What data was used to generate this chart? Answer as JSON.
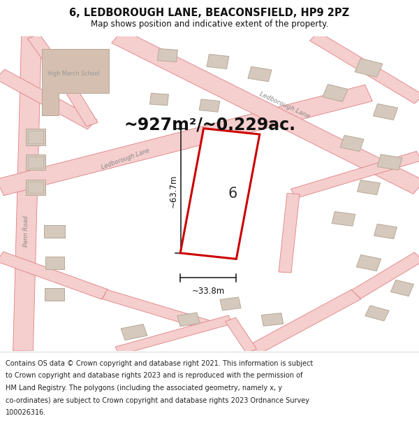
{
  "title": "6, LEDBOROUGH LANE, BEACONSFIELD, HP9 2PZ",
  "subtitle": "Map shows position and indicative extent of the property.",
  "area_label": "~927m²/~0.229ac.",
  "number_label": "6",
  "dim_height": "~63.7m",
  "dim_width": "~33.8m",
  "footer_lines": [
    "Contains OS data © Crown copyright and database right 2021. This information is subject",
    "to Crown copyright and database rights 2023 and is reproduced with the permission of",
    "HM Land Registry. The polygons (including the associated geometry, namely x, y",
    "co-ordinates) are subject to Crown copyright and database rights 2023 Ordnance Survey",
    "100026316."
  ],
  "map_bg": "#f0ebe6",
  "road_fill": "#f5cece",
  "road_edge": "#e08080",
  "building_fill": "#d4c9bc",
  "building_edge": "#b8a898",
  "school_fill": "#d4bfb0",
  "highlight_color": "#cc0000",
  "highlight_fill": "#ffffff",
  "dim_color": "#111111",
  "title_color": "#111111",
  "footer_bg": "#f8f8f8",
  "figsize": [
    6.0,
    6.25
  ],
  "dpi": 100
}
